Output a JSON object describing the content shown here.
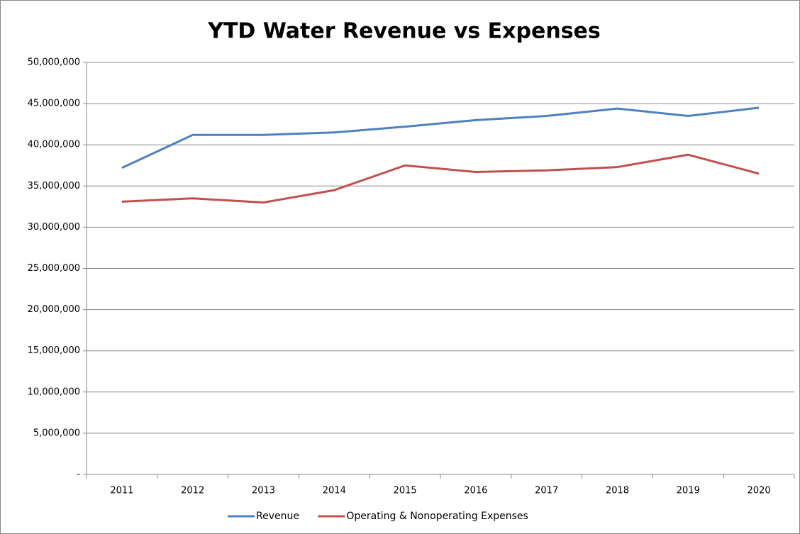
{
  "chart_data": {
    "type": "line",
    "title": "YTD Water Revenue vs Expenses",
    "categories": [
      "2011",
      "2012",
      "2013",
      "2014",
      "2015",
      "2016",
      "2017",
      "2018",
      "2019",
      "2020"
    ],
    "series": [
      {
        "name": "Revenue",
        "color": "#4f81bd",
        "values": [
          37200000,
          41200000,
          41200000,
          41500000,
          42200000,
          43000000,
          43500000,
          44400000,
          43500000,
          44500000
        ]
      },
      {
        "name": "Operating & Nonoperating Expenses",
        "color": "#c0504d",
        "values": [
          33100000,
          33500000,
          33000000,
          34500000,
          37500000,
          36700000,
          36900000,
          37300000,
          38800000,
          36500000
        ]
      }
    ],
    "ylim": [
      0,
      50000000
    ],
    "yticks": [
      {
        "value": 0,
        "label": "-"
      },
      {
        "value": 5000000,
        "label": "5,000,000"
      },
      {
        "value": 10000000,
        "label": "10,000,000"
      },
      {
        "value": 15000000,
        "label": "15,000,000"
      },
      {
        "value": 20000000,
        "label": "20,000,000"
      },
      {
        "value": 25000000,
        "label": "25,000,000"
      },
      {
        "value": 30000000,
        "label": "30,000,000"
      },
      {
        "value": 35000000,
        "label": "35,000,000"
      },
      {
        "value": 40000000,
        "label": "40,000,000"
      },
      {
        "value": 45000000,
        "label": "45,000,000"
      },
      {
        "value": 50000000,
        "label": "50,000,000"
      }
    ],
    "grid": true,
    "legend": "bottom"
  }
}
